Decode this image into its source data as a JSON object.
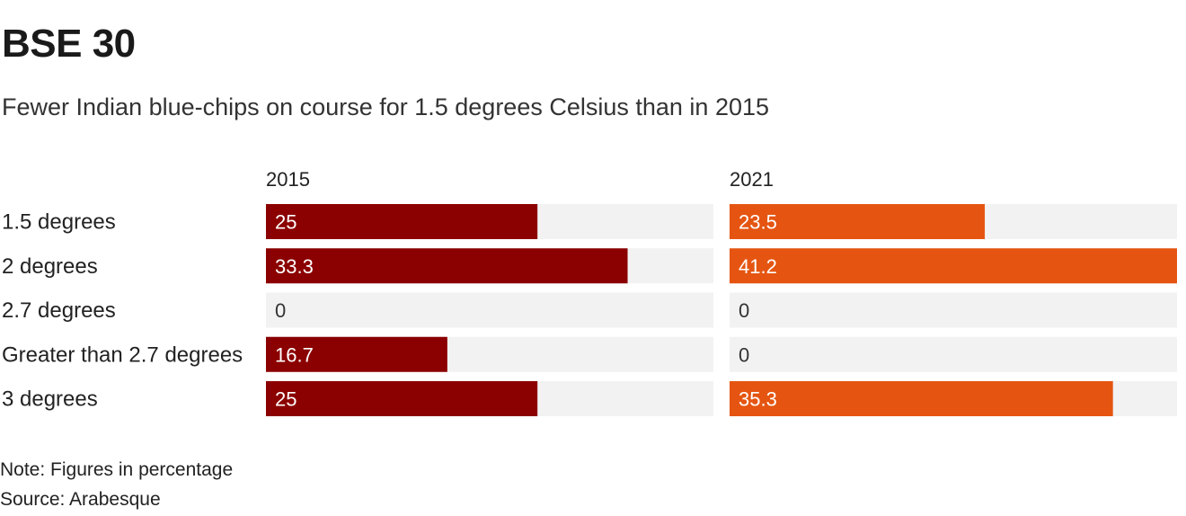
{
  "title": "BSE 30",
  "subtitle": "Fewer Indian blue-chips on course for 1.5 degrees Celsius than in 2015",
  "note": "Note: Figures in percentage",
  "source": "Source: Arabesque",
  "chart_data": {
    "type": "bar",
    "orientation": "horizontal",
    "layout": "small-multiples",
    "categories": [
      "1.5 degrees",
      "2 degrees",
      "2.7 degrees",
      "Greater than 2.7 degrees",
      "3 degrees"
    ],
    "series": [
      {
        "name": "2015",
        "values": [
          25,
          33.3,
          0,
          16.7,
          25
        ],
        "color": "#8b0000"
      },
      {
        "name": "2021",
        "values": [
          23.5,
          41.2,
          0,
          0,
          35.3
        ],
        "color": "#e55511"
      }
    ],
    "xlim": [
      0,
      41.2
    ],
    "track_color": "#f2f2f2",
    "data_labels": true,
    "grid": false
  }
}
